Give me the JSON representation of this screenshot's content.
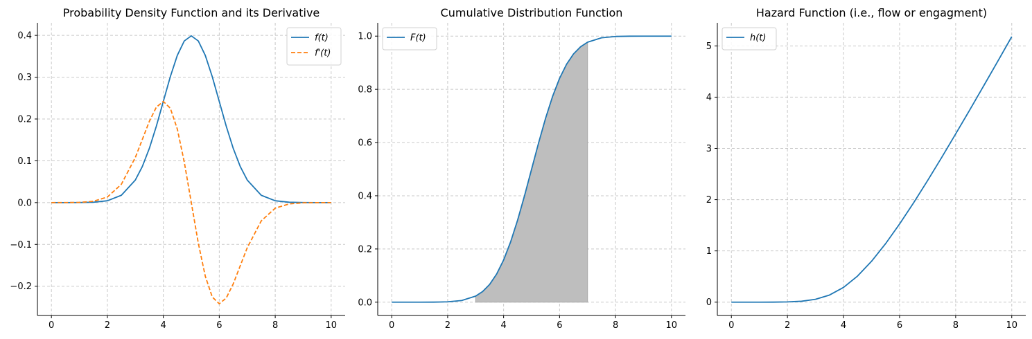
{
  "colors": {
    "blue": "#1f77b4",
    "orange": "#ff7f0e",
    "fill": "#bebebe",
    "grid": "#c8c8c8"
  },
  "chart_data": [
    {
      "type": "line",
      "title": "Probability Density Function and its Derivative",
      "xlim": [
        -0.5,
        10.5
      ],
      "ylim": [
        -0.27,
        0.43
      ],
      "xticks": [
        0,
        2,
        4,
        6,
        8,
        10
      ],
      "xtick_labels": [
        "0",
        "2",
        "4",
        "6",
        "8",
        "10"
      ],
      "yticks": [
        -0.2,
        -0.1,
        0.0,
        0.1,
        0.2,
        0.3,
        0.4
      ],
      "ytick_labels": [
        "−0.2",
        "−0.1",
        "0.0",
        "0.1",
        "0.2",
        "0.3",
        "0.4"
      ],
      "grid": true,
      "legend": "top-right",
      "x": [
        0,
        0.5,
        1,
        1.5,
        2,
        2.5,
        3,
        3.25,
        3.5,
        3.75,
        4,
        4.25,
        4.5,
        4.75,
        5,
        5.25,
        5.5,
        5.75,
        6,
        6.25,
        6.5,
        6.75,
        7,
        7.5,
        8,
        8.5,
        9,
        9.5,
        10
      ],
      "series": [
        {
          "name": "f(t)",
          "style": "solid",
          "color": "#1f77b4",
          "values": [
            0.0,
            0.0,
            0.0001,
            0.0009,
            0.0044,
            0.0175,
            0.054,
            0.0863,
            0.1295,
            0.1826,
            0.242,
            0.3011,
            0.3521,
            0.3867,
            0.3989,
            0.3867,
            0.3521,
            0.3011,
            0.242,
            0.1826,
            0.1295,
            0.0863,
            0.054,
            0.0175,
            0.0044,
            0.0009,
            0.0001,
            0.0,
            0.0
          ]
        },
        {
          "name": "f'(t)",
          "style": "dashed",
          "color": "#ff7f0e",
          "values": [
            0.0,
            0.0001,
            0.0005,
            0.0031,
            0.0133,
            0.0438,
            0.108,
            0.151,
            0.1943,
            0.2282,
            0.242,
            0.2258,
            0.176,
            0.0967,
            0.0,
            -0.0967,
            -0.176,
            -0.2258,
            -0.242,
            -0.2282,
            -0.1943,
            -0.151,
            -0.108,
            -0.0438,
            -0.0133,
            -0.0031,
            -0.0005,
            -0.0001,
            0.0
          ]
        }
      ]
    },
    {
      "type": "area",
      "title": "Cumulative Distribution Function",
      "xlim": [
        -0.5,
        10.5
      ],
      "ylim": [
        -0.05,
        1.05
      ],
      "xticks": [
        0,
        2,
        4,
        6,
        8,
        10
      ],
      "xtick_labels": [
        "0",
        "2",
        "4",
        "6",
        "8",
        "10"
      ],
      "yticks": [
        0.0,
        0.2,
        0.4,
        0.6,
        0.8,
        1.0
      ],
      "ytick_labels": [
        "0.0",
        "0.2",
        "0.4",
        "0.6",
        "0.8",
        "1.0"
      ],
      "grid": true,
      "legend": "top-left",
      "shaded_interval": [
        3,
        7
      ],
      "x": [
        0,
        0.5,
        1,
        1.5,
        2,
        2.5,
        3,
        3.25,
        3.5,
        3.75,
        4,
        4.25,
        4.5,
        4.75,
        5,
        5.25,
        5.5,
        5.75,
        6,
        6.25,
        6.5,
        6.75,
        7,
        7.5,
        8,
        8.5,
        9,
        9.5,
        10
      ],
      "series": [
        {
          "name": "F(t)",
          "style": "solid",
          "color": "#1f77b4",
          "values": [
            0.0,
            0.0,
            0.0,
            0.0002,
            0.0013,
            0.0062,
            0.0228,
            0.0401,
            0.0668,
            0.1056,
            0.1587,
            0.2266,
            0.3085,
            0.4013,
            0.5,
            0.5987,
            0.6915,
            0.7734,
            0.8413,
            0.8944,
            0.9332,
            0.9599,
            0.9772,
            0.9938,
            0.9987,
            0.9998,
            1.0,
            1.0,
            1.0
          ]
        }
      ]
    },
    {
      "type": "line",
      "title": "Hazard Function (i.e., flow or engagment)",
      "xlim": [
        -0.5,
        10.5
      ],
      "ylim": [
        -0.26,
        5.45
      ],
      "xticks": [
        0,
        2,
        4,
        6,
        8,
        10
      ],
      "xtick_labels": [
        "0",
        "2",
        "4",
        "6",
        "8",
        "10"
      ],
      "yticks": [
        0,
        1,
        2,
        3,
        4,
        5
      ],
      "ytick_labels": [
        "0",
        "1",
        "2",
        "3",
        "4",
        "5"
      ],
      "grid": true,
      "legend": "top-left",
      "x": [
        0,
        0.5,
        1,
        1.5,
        2,
        2.5,
        3,
        3.5,
        4,
        4.5,
        5,
        5.5,
        6,
        6.5,
        7,
        7.5,
        8,
        8.5,
        9,
        9.5,
        10
      ],
      "series": [
        {
          "name": "h(t)",
          "style": "solid",
          "color": "#1f77b4",
          "values": [
            0.0,
            0.0,
            0.0001,
            0.0009,
            0.0044,
            0.0176,
            0.0553,
            0.1387,
            0.2876,
            0.5092,
            0.7979,
            1.1411,
            1.5251,
            1.9387,
            2.3732,
            2.8216,
            3.2831,
            3.7484,
            4.2216,
            4.6989,
            5.18
          ]
        }
      ]
    }
  ]
}
